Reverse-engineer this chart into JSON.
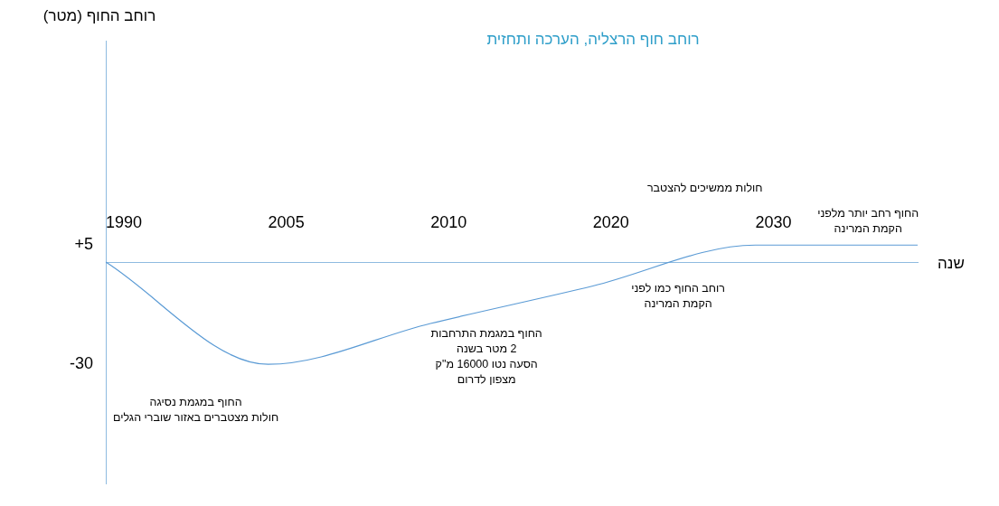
{
  "chart_data": {
    "type": "line",
    "title": "רוחב חוף הרצליה, הערכה ותחזית",
    "xlabel": "שנה",
    "ylabel": "רוחב החוף (מטר)",
    "categories": [
      "1990",
      "2005",
      "2010",
      "2020",
      "2030",
      null
    ],
    "series": [
      {
        "color": "#5b9bd5",
        "values": [
          0,
          -30,
          -18,
          -7,
          5,
          5
        ]
      }
    ],
    "ylim": [
      -65,
      65
    ],
    "yticks": [
      {
        "value": 5,
        "label": "+5"
      },
      -30
    ],
    "grid": false,
    "legend": false,
    "marker": "none",
    "line_style": "solid",
    "annotations": [
      {
        "text": "החוף במגמת נסיגה\nחולות מצטברים באזור שוברי הגלים",
        "x": "2005",
        "y": -30
      },
      {
        "text": "החוף במגמת התרחבות\n2 מטר בשנה\nהסעה נטו 16000 מ\"ק\nמצפון לדרום",
        "x": "2010",
        "y": -18
      },
      "רוחב החוף כמו לפני\nהקמת המרינה",
      "חולות ממשיכים להצטבר",
      "החוף רחב יותר מלפני\nהקמת המרינה"
    ]
  }
}
